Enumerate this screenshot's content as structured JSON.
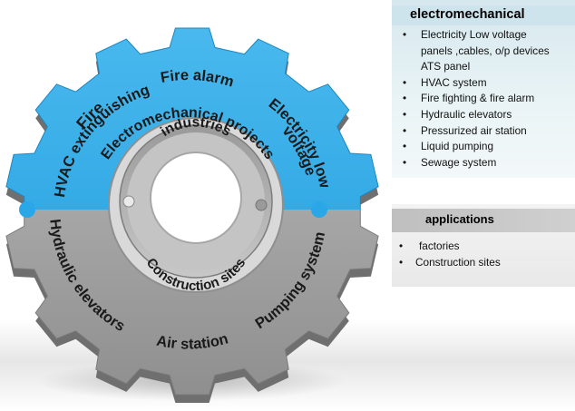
{
  "gear": {
    "top_labels": {
      "fire": "Fire",
      "hvac_extinguishing": "HVAC extinguishing",
      "fire_alarm": "Fire alarm",
      "electricity_low_voltage_line1": "Electricity low",
      "electricity_low_voltage_line2": "voltage",
      "electromechanical_projects": "Electromechanical projects"
    },
    "bottom_labels": {
      "hydraulic_elevators": "Hydraulic elevators",
      "air_station": "Air station",
      "pumping_system": "Pumping system"
    },
    "inner_labels": {
      "industries": "industries",
      "construction_sites": "Construction sites"
    },
    "colors": {
      "top_half": "#2aa7e6",
      "bottom_half": "#a9a9a9"
    }
  },
  "electromechanical_panel": {
    "title": "electromechanical",
    "items": [
      "Electricity Low voltage",
      "panels ,cables, o/p devices",
      "ATS panel",
      "HVAC system",
      "Fire fighting & fire alarm",
      "Hydraulic elevators",
      "Pressurized air station",
      "Liquid pumping",
      "Sewage system"
    ]
  },
  "applications_panel": {
    "title": "applications",
    "items": [
      "factories",
      "Construction sites"
    ]
  }
}
